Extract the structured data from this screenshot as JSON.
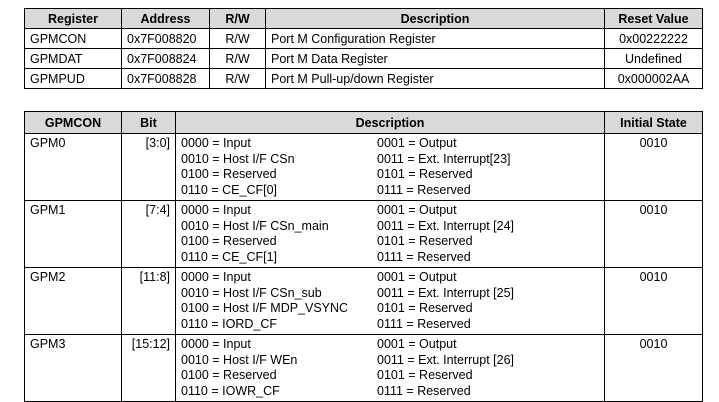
{
  "register_table": {
    "headers": [
      "Register",
      "Address",
      "R/W",
      "Description",
      "Reset Value"
    ],
    "rows": [
      [
        "GPMCON",
        "0x7F008820",
        "R/W",
        "Port M Configuration Register",
        "0x00222222"
      ],
      [
        "GPMDAT",
        "0x7F008824",
        "R/W",
        "Port M Data Register",
        "Undefined"
      ],
      [
        "GPMPUD",
        "0x7F008828",
        "R/W",
        "Port M Pull-up/down Register",
        "0x000002AA"
      ]
    ]
  },
  "gpmcon_table": {
    "headers": [
      "GPMCON",
      "Bit",
      "Description",
      "Initial State"
    ],
    "rows": [
      {
        "name": "GPM0",
        "bit": "[3:0]",
        "desc": [
          "0000 = Input",
          "0001 = Output",
          "0010 = Host I/F CSn",
          "0011 = Ext. Interrupt[23]",
          "0100 = Reserved",
          "0101 = Reserved",
          "0110 = CE_CF[0]",
          "0111 = Reserved"
        ],
        "init": "0010"
      },
      {
        "name": "GPM1",
        "bit": "[7:4]",
        "desc": [
          "0000 = Input",
          "0001 = Output",
          "0010 = Host I/F CSn_main",
          "0011 = Ext. Interrupt [24]",
          "0100 = Reserved",
          "0101 = Reserved",
          "0110 = CE_CF[1]",
          "0111 = Reserved"
        ],
        "init": "0010"
      },
      {
        "name": "GPM2",
        "bit": "[11:8]",
        "desc": [
          "0000 = Input",
          "0001 = Output",
          "0010 = Host I/F CSn_sub",
          "0011 = Ext. Interrupt [25]",
          "0100 = Host I/F MDP_VSYNC",
          "0101 = Reserved",
          "0110 = IORD_CF",
          "0111 = Reserved"
        ],
        "init": "0010"
      },
      {
        "name": "GPM3",
        "bit": "[15:12]",
        "desc": [
          "0000 = Input",
          "0001 = Output",
          "0010 = Host I/F WEn",
          "0011 = Ext. Interrupt [26]",
          "0100 = Reserved",
          "0101 = Reserved",
          "0110 = IOWR_CF",
          "0111 = Reserved"
        ],
        "init": "0010"
      }
    ]
  }
}
